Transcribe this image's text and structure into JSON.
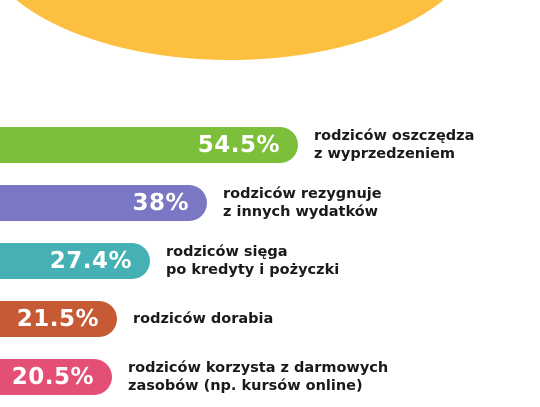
{
  "header": {
    "fragment_text": "",
    "blob_color": "#fdbf3f"
  },
  "chart_data": {
    "type": "bar",
    "orientation": "horizontal",
    "value_unit": "%",
    "xlim": [
      0,
      100
    ],
    "items": [
      {
        "value": 54.5,
        "label": "54.5%",
        "caption": [
          "rodziców oszczędza",
          "z wyprzedzeniem"
        ],
        "color": "#7cbf3a"
      },
      {
        "value": 38,
        "label": "38%",
        "caption": [
          "rodziców rezygnuje",
          "z innych wydatków"
        ],
        "color": "#7a77c4"
      },
      {
        "value": 27.4,
        "label": "27.4%",
        "caption": [
          "rodziców sięga",
          "po kredyty i pożyczki"
        ],
        "color": "#46b1b4"
      },
      {
        "value": 21.5,
        "label": "21.5%",
        "caption": [
          "rodziców dorabia"
        ],
        "color": "#c65a35"
      },
      {
        "value": 20.5,
        "label": "20.5%",
        "caption": [
          "rodziców korzysta z darmowych",
          "zasobów (np. kursów online)"
        ],
        "color": "#e44f75"
      }
    ]
  }
}
